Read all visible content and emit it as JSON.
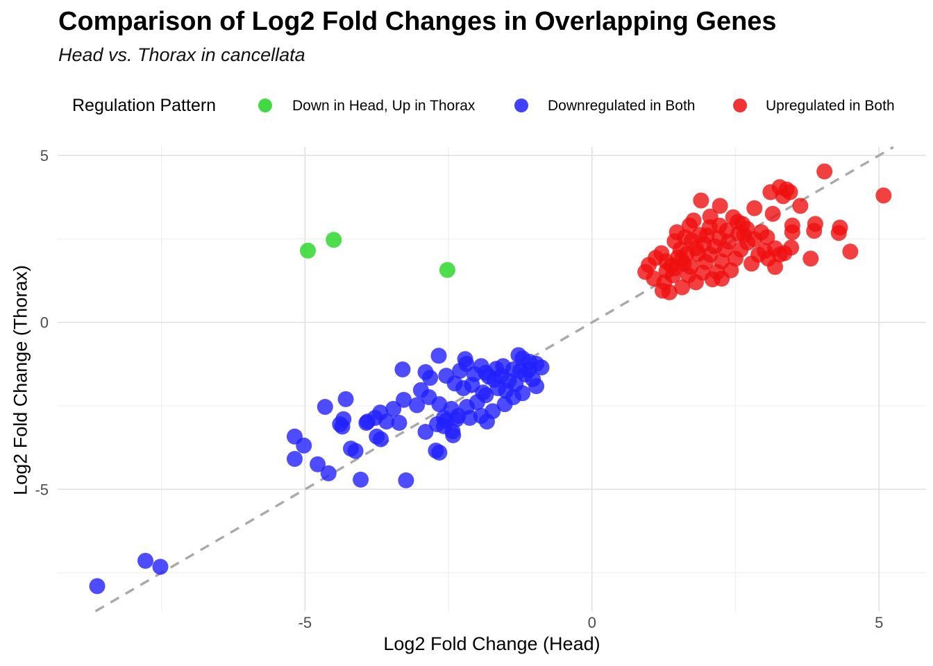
{
  "title": "Comparison of Log2 Fold Changes in Overlapping Genes",
  "subtitle": "Head vs. Thorax in cancellata",
  "legend": {
    "title": "Regulation Pattern",
    "items": [
      {
        "label": "Down in Head, Up in Thorax",
        "color": "#20d420"
      },
      {
        "label": "Downregulated in Both",
        "color": "#2020ff"
      },
      {
        "label": "Upregulated in Both",
        "color": "#ef0f0f"
      }
    ]
  },
  "chart_data": {
    "type": "scatter",
    "title": "Comparison of Log2 Fold Changes in Overlapping Genes",
    "subtitle": "Head vs. Thorax in cancellata",
    "xlabel": "Log2 Fold Change (Head)",
    "ylabel": "Log2 Fold Change (Thorax)",
    "xlim": [
      -9.31,
      5.82
    ],
    "ylim": [
      -8.65,
      5.25
    ],
    "x_ticks": [
      -5,
      0,
      5
    ],
    "y_ticks": [
      -5,
      0,
      5
    ],
    "x_minor_ticks": [
      -7.5,
      -2.5,
      2.5
    ],
    "y_minor_ticks": [
      -7.5,
      -2.5,
      2.5
    ],
    "grid": true,
    "legend_position": "top",
    "identity_line": {
      "equation": "y = x",
      "style": "dashed",
      "color": "#a9a9a9"
    },
    "point_radius": 11.5,
    "point_opacity": 0.8,
    "tick_color": "#4d4d4d",
    "major_grid_color": "#e2e2e2",
    "minor_grid_color": "#f0f0f0",
    "series": [
      {
        "name": "Down in Head, Up in Thorax",
        "color": "#20d420",
        "points": [
          [
            -4.95,
            2.15
          ],
          [
            -4.5,
            2.47
          ],
          [
            -2.52,
            1.57
          ]
        ]
      },
      {
        "name": "Downregulated in Both",
        "color": "#2020ff",
        "points": [
          [
            -8.62,
            -7.9
          ],
          [
            -7.78,
            -7.14
          ],
          [
            -7.52,
            -7.32
          ],
          [
            -5.18,
            -3.42
          ],
          [
            -5.02,
            -3.69
          ],
          [
            -5.18,
            -4.09
          ],
          [
            -4.78,
            -4.25
          ],
          [
            -4.59,
            -4.52
          ],
          [
            -4.65,
            -2.53
          ],
          [
            -4.39,
            -3.05
          ],
          [
            -4.35,
            -3.12
          ],
          [
            -4.29,
            -2.3
          ],
          [
            -4.33,
            -2.9
          ],
          [
            -4.2,
            -3.78
          ],
          [
            -4.12,
            -3.85
          ],
          [
            -4.03,
            -4.71
          ],
          [
            -3.93,
            -3.01
          ],
          [
            -3.91,
            -2.97
          ],
          [
            -3.78,
            -2.86
          ],
          [
            -3.75,
            -3.42
          ],
          [
            -3.68,
            -3.5
          ],
          [
            -3.58,
            -2.97
          ],
          [
            -3.46,
            -2.59
          ],
          [
            -3.36,
            -3.01
          ],
          [
            -3.3,
            -1.41
          ],
          [
            -3.28,
            -2.32
          ],
          [
            -3.24,
            -4.73
          ],
          [
            -3.69,
            -2.7
          ],
          [
            -3.05,
            -2.48
          ],
          [
            -2.98,
            -2.03
          ],
          [
            -2.9,
            -1.49
          ],
          [
            -2.9,
            -3.28
          ],
          [
            -2.84,
            -2.24
          ],
          [
            -2.82,
            -1.66
          ],
          [
            -2.72,
            -3.84
          ],
          [
            -2.7,
            -3.05
          ],
          [
            -2.67,
            -1.0
          ],
          [
            -2.66,
            -2.45
          ],
          [
            -2.66,
            -3.9
          ],
          [
            -2.58,
            -2.86
          ],
          [
            -2.58,
            -3.11
          ],
          [
            -2.54,
            -1.6
          ],
          [
            -2.54,
            -2.95
          ],
          [
            -2.45,
            -2.59
          ],
          [
            -2.43,
            -3.26
          ],
          [
            -2.42,
            -3.38
          ],
          [
            -2.39,
            -1.83
          ],
          [
            -2.36,
            -2.9
          ],
          [
            -2.33,
            -2.8
          ],
          [
            -2.3,
            -1.45
          ],
          [
            -2.24,
            -1.97
          ],
          [
            -2.21,
            -1.1
          ],
          [
            -2.19,
            -1.24
          ],
          [
            -2.18,
            -2.53
          ],
          [
            -2.13,
            -2.86
          ],
          [
            -2.09,
            -1.87
          ],
          [
            -2.05,
            -1.55
          ],
          [
            -2.0,
            -2.39
          ],
          [
            -1.93,
            -1.31
          ],
          [
            -1.93,
            -2.8
          ],
          [
            -1.9,
            -2.1
          ],
          [
            -1.85,
            -1.51
          ],
          [
            -1.85,
            -2.18
          ],
          [
            -1.83,
            -2.97
          ],
          [
            -1.8,
            -1.62
          ],
          [
            -1.73,
            -2.66
          ],
          [
            -1.7,
            -1.72
          ],
          [
            -1.67,
            -1.39
          ],
          [
            -1.64,
            -1.97
          ],
          [
            -1.58,
            -1.6
          ],
          [
            -1.55,
            -1.31
          ],
          [
            -1.52,
            -2.45
          ],
          [
            -1.5,
            -2.05
          ],
          [
            -1.45,
            -1.75
          ],
          [
            -1.37,
            -1.41
          ],
          [
            -1.37,
            -2.24
          ],
          [
            -1.33,
            -1.85
          ],
          [
            -1.28,
            -0.98
          ],
          [
            -1.25,
            -1.45
          ],
          [
            -1.21,
            -1.08
          ],
          [
            -1.21,
            -2.12
          ],
          [
            -1.16,
            -1.56
          ],
          [
            -1.1,
            -1.42
          ],
          [
            -1.09,
            -1.18
          ],
          [
            -1.03,
            -1.7
          ],
          [
            -0.97,
            -1.24
          ],
          [
            -0.97,
            -1.91
          ],
          [
            -0.88,
            -1.35
          ]
        ]
      },
      {
        "name": "Upregulated in Both",
        "color": "#ef0f0f",
        "points": [
          [
            0.93,
            1.51
          ],
          [
            0.99,
            1.72
          ],
          [
            1.08,
            1.31
          ],
          [
            1.11,
            1.93
          ],
          [
            1.21,
            2.07
          ],
          [
            1.23,
            0.95
          ],
          [
            1.26,
            1.2
          ],
          [
            1.29,
            1.83
          ],
          [
            1.35,
            0.9
          ],
          [
            1.3,
            1.55
          ],
          [
            1.38,
            1.7
          ],
          [
            1.41,
            1.41
          ],
          [
            1.44,
            2.43
          ],
          [
            1.45,
            1.62
          ],
          [
            1.48,
            2.7
          ],
          [
            1.5,
            1.95
          ],
          [
            1.54,
            2.18
          ],
          [
            1.56,
            1.87
          ],
          [
            1.57,
            1.05
          ],
          [
            1.6,
            1.75
          ],
          [
            1.62,
            2.55
          ],
          [
            1.65,
            2.05
          ],
          [
            1.68,
            1.41
          ],
          [
            1.7,
            2.9
          ],
          [
            1.72,
            1.66
          ],
          [
            1.74,
            2.45
          ],
          [
            1.77,
            3.05
          ],
          [
            1.81,
            1.2
          ],
          [
            1.81,
            2.22
          ],
          [
            1.85,
            2.05
          ],
          [
            1.88,
            2.62
          ],
          [
            1.9,
            3.65
          ],
          [
            1.93,
            1.49
          ],
          [
            1.95,
            2.35
          ],
          [
            1.98,
            1.81
          ],
          [
            2.0,
            2.6
          ],
          [
            2.05,
            2.85
          ],
          [
            2.06,
            2.03
          ],
          [
            2.06,
            3.17
          ],
          [
            2.1,
            1.29
          ],
          [
            2.14,
            2.28
          ],
          [
            2.18,
            1.51
          ],
          [
            2.22,
            2.53
          ],
          [
            2.22,
            2.9
          ],
          [
            2.23,
            3.49
          ],
          [
            2.26,
            1.31
          ],
          [
            2.26,
            1.83
          ],
          [
            2.32,
            2.18
          ],
          [
            2.35,
            2.75
          ],
          [
            2.38,
            2.42
          ],
          [
            2.42,
            1.56
          ],
          [
            2.46,
            3.15
          ],
          [
            2.5,
            1.91
          ],
          [
            2.54,
            3.01
          ],
          [
            2.55,
            2.65
          ],
          [
            2.59,
            2.18
          ],
          [
            2.62,
            2.95
          ],
          [
            2.65,
            2.62
          ],
          [
            2.7,
            2.8
          ],
          [
            2.71,
            2.39
          ],
          [
            2.78,
            1.76
          ],
          [
            2.83,
            2.49
          ],
          [
            2.83,
            3.42
          ],
          [
            2.9,
            2.03
          ],
          [
            2.95,
            2.7
          ],
          [
            3.01,
            2.14
          ],
          [
            3.05,
            2.55
          ],
          [
            3.07,
            1.91
          ],
          [
            3.11,
            3.9
          ],
          [
            3.15,
            3.25
          ],
          [
            3.19,
            1.66
          ],
          [
            3.19,
            2.22
          ],
          [
            3.27,
            2.03
          ],
          [
            3.27,
            4.05
          ],
          [
            3.33,
            3.78
          ],
          [
            3.35,
            2.07
          ],
          [
            3.39,
            3.98
          ],
          [
            3.45,
            3.9
          ],
          [
            3.47,
            2.24
          ],
          [
            3.49,
            2.7
          ],
          [
            3.49,
            2.9
          ],
          [
            3.63,
            3.49
          ],
          [
            3.81,
            1.91
          ],
          [
            3.87,
            2.74
          ],
          [
            3.89,
            2.95
          ],
          [
            4.05,
            4.52
          ],
          [
            4.3,
            2.68
          ],
          [
            4.32,
            2.84
          ],
          [
            4.5,
            2.12
          ],
          [
            5.08,
            3.8
          ]
        ]
      }
    ]
  }
}
